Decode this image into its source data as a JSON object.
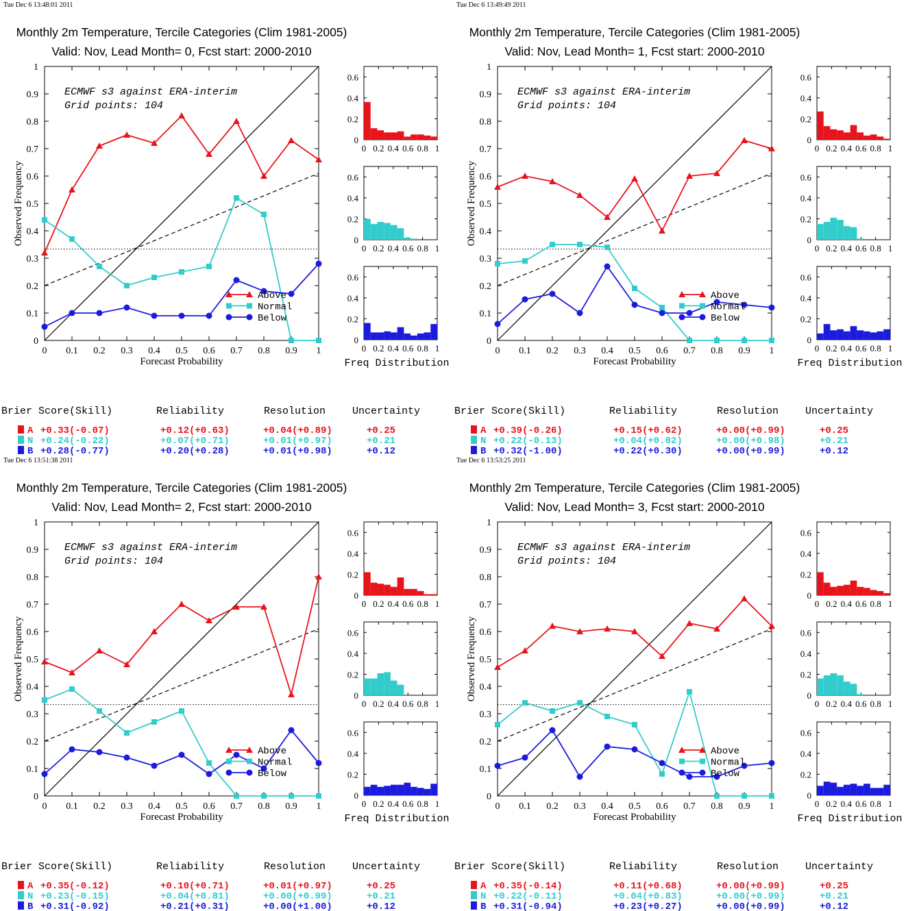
{
  "colors": {
    "above": "#e8141c",
    "normal": "#33cccc",
    "below": "#1b1bdd",
    "axis": "#000000"
  },
  "common": {
    "title": "Monthly 2m Temperature, Tercile Categories (Clim 1981-2005)",
    "info_line1": "ECMWF s3 against ERA-interim",
    "info_line2": "Grid points:  104",
    "xlabel": "Forecast Probability",
    "ylabel": "Observed Frequency",
    "hist_label": "Freq Distribution",
    "legend": [
      "Above",
      "Normal",
      "Below"
    ],
    "score_headers": [
      "Brier Score(Skill)",
      "Reliability",
      "Resolution",
      "Uncertainty"
    ],
    "score_letters": [
      "A",
      "N",
      "B"
    ]
  },
  "chart_data": [
    {
      "type": "line",
      "timestamp": "Tue Dec  6 13:48:01 2011",
      "subtitle": "Valid: Nov, Lead Month= 0, Fcst start: 2000-2010",
      "x": [
        0,
        0.1,
        0.2,
        0.3,
        0.4,
        0.5,
        0.6,
        0.7,
        0.8,
        0.9,
        1.0
      ],
      "xlim": [
        0,
        1
      ],
      "ylim": [
        0,
        1
      ],
      "series": [
        {
          "name": "Above",
          "values": [
            0.32,
            0.55,
            0.71,
            0.75,
            0.72,
            0.82,
            0.68,
            0.8,
            0.6,
            0.73,
            0.66
          ]
        },
        {
          "name": "Normal",
          "values": [
            0.44,
            0.37,
            0.27,
            0.2,
            0.23,
            0.25,
            0.27,
            0.52,
            0.46,
            0.0,
            0.0
          ]
        },
        {
          "name": "Below",
          "values": [
            0.05,
            0.1,
            0.1,
            0.12,
            0.09,
            0.09,
            0.09,
            0.22,
            0.18,
            0.17,
            0.28
          ]
        }
      ],
      "histograms": [
        [
          0.36,
          0.11,
          0.09,
          0.07,
          0.07,
          0.08,
          0.03,
          0.05,
          0.05,
          0.04,
          0.03
        ],
        [
          0.2,
          0.15,
          0.17,
          0.16,
          0.14,
          0.11,
          0.02,
          0.01,
          0.0,
          0.0,
          0.0
        ],
        [
          0.16,
          0.07,
          0.07,
          0.08,
          0.07,
          0.12,
          0.06,
          0.04,
          0.06,
          0.07,
          0.15
        ]
      ],
      "scores": [
        [
          "+0.33(-0.07)",
          "+0.12(+0.63)",
          "+0.04(+0.89)",
          "+0.25"
        ],
        [
          "+0.24(-0.22)",
          "+0.07(+0.71)",
          "+0.01(+0.97)",
          "+0.21"
        ],
        [
          "+0.28(-0.77)",
          "+0.20(+0.28)",
          "+0.01(+0.98)",
          "+0.12"
        ]
      ]
    },
    {
      "type": "line",
      "timestamp": "Tue Dec  6 13:49:49 2011",
      "subtitle": "Valid: Nov, Lead Month= 1, Fcst start: 2000-2010",
      "x": [
        0,
        0.1,
        0.2,
        0.3,
        0.4,
        0.5,
        0.6,
        0.7,
        0.8,
        0.9,
        1.0
      ],
      "xlim": [
        0,
        1
      ],
      "ylim": [
        0,
        1
      ],
      "series": [
        {
          "name": "Above",
          "values": [
            0.56,
            0.6,
            0.58,
            0.53,
            0.45,
            0.59,
            0.4,
            0.6,
            0.61,
            0.73,
            0.7
          ]
        },
        {
          "name": "Normal",
          "values": [
            0.28,
            0.29,
            0.35,
            0.35,
            0.34,
            0.19,
            0.12,
            0.0,
            0.0,
            0.0,
            0.0
          ]
        },
        {
          "name": "Below",
          "values": [
            0.06,
            0.15,
            0.17,
            0.1,
            0.27,
            0.13,
            0.1,
            0.1,
            0.14,
            0.13,
            0.12
          ]
        }
      ],
      "histograms": [
        [
          0.27,
          0.13,
          0.1,
          0.09,
          0.07,
          0.14,
          0.07,
          0.04,
          0.05,
          0.03,
          0.01
        ],
        [
          0.15,
          0.17,
          0.21,
          0.19,
          0.13,
          0.12,
          0.01,
          0.0,
          0.0,
          0.0,
          0.0
        ],
        [
          0.06,
          0.15,
          0.09,
          0.1,
          0.08,
          0.13,
          0.09,
          0.08,
          0.07,
          0.08,
          0.1
        ]
      ],
      "scores": [
        [
          "+0.39(-0.26)",
          "+0.15(+0.62)",
          "+0.00(+0.99)",
          "+0.25"
        ],
        [
          "+0.22(-0.13)",
          "+0.04(+0.82)",
          "+0.00(+0.98)",
          "+0.21"
        ],
        [
          "+0.32(-1.00)",
          "+0.22(+0.30)",
          "+0.00(+0.99)",
          "+0.12"
        ]
      ]
    },
    {
      "type": "line",
      "timestamp": "Tue Dec  6 13:51:38 2011",
      "subtitle": "Valid: Nov, Lead Month= 2, Fcst start: 2000-2010",
      "x": [
        0,
        0.1,
        0.2,
        0.3,
        0.4,
        0.5,
        0.6,
        0.7,
        0.8,
        0.9,
        1.0
      ],
      "xlim": [
        0,
        1
      ],
      "ylim": [
        0,
        1
      ],
      "series": [
        {
          "name": "Above",
          "values": [
            0.49,
            0.45,
            0.53,
            0.48,
            0.6,
            0.7,
            0.64,
            0.69,
            0.69,
            0.37,
            0.8
          ]
        },
        {
          "name": "Normal",
          "values": [
            0.35,
            0.39,
            0.31,
            0.23,
            0.27,
            0.31,
            0.12,
            0.0,
            0.0,
            0.0,
            0.0
          ]
        },
        {
          "name": "Below",
          "values": [
            0.08,
            0.17,
            0.16,
            0.14,
            0.11,
            0.15,
            0.08,
            0.15,
            0.1,
            0.24,
            0.12
          ]
        }
      ],
      "histograms": [
        [
          0.22,
          0.12,
          0.11,
          0.1,
          0.08,
          0.17,
          0.06,
          0.06,
          0.04,
          0.01,
          0.01
        ],
        [
          0.16,
          0.16,
          0.21,
          0.22,
          0.14,
          0.1,
          0.0,
          0.0,
          0.0,
          0.0,
          0.0
        ],
        [
          0.08,
          0.1,
          0.08,
          0.09,
          0.1,
          0.1,
          0.12,
          0.08,
          0.07,
          0.06,
          0.11
        ]
      ],
      "scores": [
        [
          "+0.35(-0.12)",
          "+0.10(+0.71)",
          "+0.01(+0.97)",
          "+0.25"
        ],
        [
          "+0.23(-0.15)",
          "+0.04(+0.81)",
          "+0.00(+0.99)",
          "+0.21"
        ],
        [
          "+0.31(-0.92)",
          "+0.21(+0.31)",
          "+0.00(+1.00)",
          "+0.12"
        ]
      ]
    },
    {
      "type": "line",
      "timestamp": "Tue Dec  6 13:53:25 2011",
      "subtitle": "Valid: Nov, Lead Month= 3, Fcst start: 2000-2010",
      "x": [
        0,
        0.1,
        0.2,
        0.3,
        0.4,
        0.5,
        0.6,
        0.7,
        0.8,
        0.9,
        1.0
      ],
      "xlim": [
        0,
        1
      ],
      "ylim": [
        0,
        1
      ],
      "series": [
        {
          "name": "Above",
          "values": [
            0.47,
            0.53,
            0.62,
            0.6,
            0.61,
            0.6,
            0.51,
            0.63,
            0.61,
            0.72,
            0.62
          ]
        },
        {
          "name": "Normal",
          "values": [
            0.26,
            0.34,
            0.31,
            0.34,
            0.29,
            0.26,
            0.08,
            0.38,
            0.0,
            0.0,
            0.0
          ]
        },
        {
          "name": "Below",
          "values": [
            0.11,
            0.14,
            0.24,
            0.07,
            0.18,
            0.17,
            0.12,
            0.07,
            0.07,
            0.11,
            0.12
          ]
        }
      ],
      "histograms": [
        [
          0.22,
          0.12,
          0.08,
          0.09,
          0.1,
          0.14,
          0.08,
          0.07,
          0.05,
          0.04,
          0.02
        ],
        [
          0.16,
          0.19,
          0.21,
          0.19,
          0.13,
          0.11,
          0.01,
          0.0,
          0.0,
          0.0,
          0.0
        ],
        [
          0.09,
          0.13,
          0.12,
          0.08,
          0.1,
          0.11,
          0.09,
          0.11,
          0.07,
          0.07,
          0.1
        ]
      ],
      "scores": [
        [
          "+0.35(-0.14)",
          "+0.11(+0.68)",
          "+0.00(+0.99)",
          "+0.25"
        ],
        [
          "+0.22(-0.11)",
          "+0.04(+0.83)",
          "+0.00(+0.99)",
          "+0.21"
        ],
        [
          "+0.31(-0.94)",
          "+0.23(+0.27)",
          "+0.00(+0.99)",
          "+0.12"
        ]
      ]
    }
  ]
}
